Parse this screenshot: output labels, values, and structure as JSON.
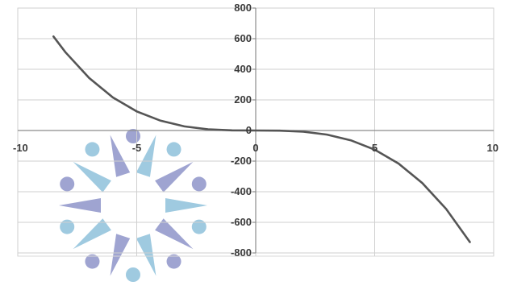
{
  "chart_data": {
    "type": "line",
    "x_ticks": [
      "-10",
      "-5",
      "0",
      "5",
      "10"
    ],
    "y_ticks": [
      "800",
      "600",
      "400",
      "200",
      "0",
      "-200",
      "-400",
      "-600",
      "-800"
    ],
    "xlim": [
      -10,
      10
    ],
    "ylim": [
      -800,
      800
    ],
    "grid": true,
    "series": [
      {
        "color": "#555555",
        "x": [
          -8.5,
          -8,
          -7,
          -6,
          -5,
          -4,
          -3,
          -2,
          -1,
          0,
          1,
          2,
          3,
          4,
          5,
          6,
          7,
          8,
          9
        ],
        "y": [
          614,
          512,
          343,
          216,
          125,
          64,
          27,
          8,
          1,
          0,
          -1,
          -8,
          -27,
          -64,
          -125,
          -216,
          -343,
          -512,
          -729
        ]
      }
    ],
    "watermark_color": "#7fb9d6"
  }
}
